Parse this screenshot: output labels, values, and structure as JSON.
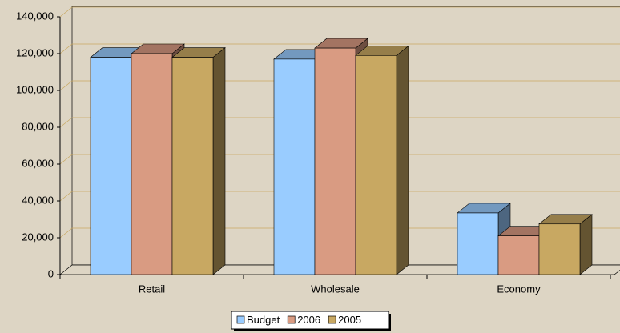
{
  "chart_data": {
    "type": "bar3d",
    "categories": [
      "Retail",
      "Wholesale",
      "Economy"
    ],
    "series": [
      {
        "name": "Budget",
        "color": "#99ccff",
        "values": [
          118000,
          117000,
          33500
        ]
      },
      {
        "name": "2006",
        "color": "#d99b82",
        "values": [
          120000,
          123000,
          21000
        ]
      },
      {
        "name": "2005",
        "color": "#c8a862",
        "values": [
          118000,
          119000,
          27500
        ]
      }
    ],
    "ylim": [
      0,
      140000
    ],
    "yticks": [
      0,
      {
        "value": 20000,
        "label": "20,000"
      },
      {
        "value": 40000,
        "label": "40,000"
      },
      {
        "value": 60000,
        "label": "60,000"
      },
      {
        "value": 80000,
        "label": "80,000"
      },
      {
        "value": 100000,
        "label": "100,000"
      },
      {
        "value": 120000,
        "label": "120,000"
      },
      {
        "value": 140000,
        "label": "140,000"
      }
    ],
    "grid": true,
    "legend": "bottom"
  }
}
